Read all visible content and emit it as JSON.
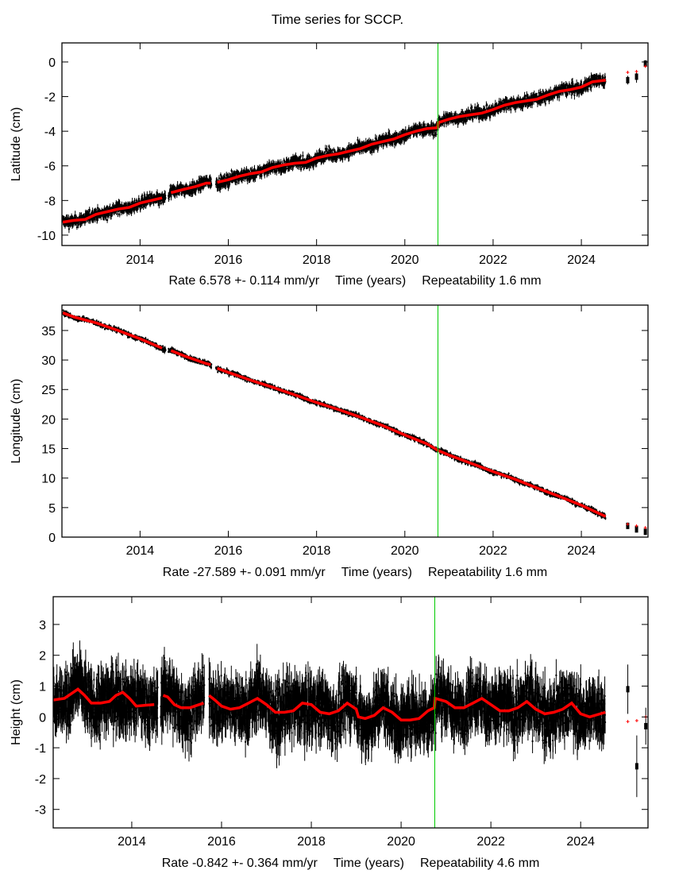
{
  "title": "Time series for SCCP.",
  "colors": {
    "observations": "#000000",
    "model": "#ff0000",
    "marker_line": "#00cc00",
    "axes": "#000000"
  },
  "chart_data": [
    {
      "type": "scatter",
      "title": "Time series for SCCP.",
      "ylabel": "Latitude (cm)",
      "xlabel": "Time (years)",
      "rate_label": "Rate 6.578 +- 0.114 mm/yr",
      "repeatability_label": "Repeatability 1.6 mm",
      "xlim": [
        2012.23,
        2025.51
      ],
      "ylim": [
        -10.6,
        1.1
      ],
      "xticks": [
        2014,
        2016,
        2018,
        2020,
        2022,
        2024
      ],
      "yticks": [
        0,
        -2,
        -4,
        -6,
        -8,
        -10
      ],
      "vertical_marker": 2020.75,
      "gaps": [
        [
          2014.58,
          2014.64
        ],
        [
          2015.62,
          2015.72
        ]
      ],
      "obs_scatter_cm": 0.28,
      "model": {
        "x": [
          2012.25,
          2012.5,
          2012.75,
          2013.0,
          2013.25,
          2013.5,
          2013.75,
          2014.0,
          2014.25,
          2014.5,
          2014.6,
          2014.7,
          2015.0,
          2015.25,
          2015.5,
          2015.6,
          2015.75,
          2016.0,
          2016.25,
          2016.5,
          2016.75,
          2017.0,
          2017.25,
          2017.5,
          2017.75,
          2018.0,
          2018.25,
          2018.5,
          2018.75,
          2019.0,
          2019.25,
          2019.5,
          2019.75,
          2020.0,
          2020.25,
          2020.5,
          2020.74,
          2020.76,
          2021.0,
          2021.25,
          2021.5,
          2021.75,
          2022.0,
          2022.25,
          2022.5,
          2022.75,
          2023.0,
          2023.25,
          2023.5,
          2023.75,
          2024.0,
          2024.25,
          2024.55
        ],
        "y": [
          -9.25,
          -9.15,
          -9.1,
          -8.8,
          -8.65,
          -8.5,
          -8.4,
          -8.15,
          -8.0,
          -7.85,
          -7.8,
          -7.55,
          -7.35,
          -7.2,
          -7.0,
          -7.0,
          -6.95,
          -6.8,
          -6.6,
          -6.45,
          -6.35,
          -6.1,
          -5.95,
          -5.85,
          -5.8,
          -5.55,
          -5.4,
          -5.3,
          -5.15,
          -5.0,
          -4.75,
          -4.6,
          -4.45,
          -4.2,
          -4.0,
          -3.85,
          -3.8,
          -3.5,
          -3.3,
          -3.15,
          -3.05,
          -2.95,
          -2.75,
          -2.5,
          -2.35,
          -2.25,
          -2.15,
          -1.9,
          -1.7,
          -1.6,
          -1.45,
          -1.15,
          -1.05
        ]
      },
      "isolated_points": [
        {
          "x": 2025.05,
          "obs": -1.05,
          "err": 0.25,
          "model": -0.6
        },
        {
          "x": 2025.25,
          "obs": -0.85,
          "err": 0.35,
          "model": -0.55
        },
        {
          "x": 2025.45,
          "obs": -0.1,
          "err": 0.2,
          "model": -0.25
        }
      ]
    },
    {
      "type": "scatter",
      "ylabel": "Longitude (cm)",
      "xlabel": "Time (years)",
      "rate_label": "Rate -27.589 +- 0.091 mm/yr",
      "repeatability_label": "Repeatability 1.6 mm",
      "xlim": [
        2012.23,
        2025.51
      ],
      "ylim": [
        0,
        39.3
      ],
      "xticks": [
        2014,
        2016,
        2018,
        2020,
        2022,
        2024
      ],
      "yticks": [
        0,
        5,
        10,
        15,
        20,
        25,
        30,
        35
      ],
      "vertical_marker": 2020.75,
      "gaps": [
        [
          2014.58,
          2014.64
        ],
        [
          2015.62,
          2015.72
        ]
      ],
      "obs_scatter_cm": 0.35,
      "model": {
        "x": [
          2012.25,
          2012.5,
          2013.0,
          2013.5,
          2014.0,
          2014.5,
          2014.6,
          2014.7,
          2015.0,
          2015.5,
          2015.6,
          2015.75,
          2016.0,
          2016.5,
          2017.0,
          2017.5,
          2018.0,
          2018.5,
          2019.0,
          2019.5,
          2020.0,
          2020.5,
          2020.75,
          2021.0,
          2021.5,
          2022.0,
          2022.5,
          2023.0,
          2023.5,
          2024.0,
          2024.55
        ],
        "y": [
          38.0,
          37.3,
          36.3,
          35.0,
          33.6,
          32.0,
          31.8,
          31.6,
          30.7,
          29.4,
          29.2,
          28.6,
          27.9,
          26.6,
          25.4,
          24.1,
          22.8,
          21.6,
          20.3,
          18.9,
          17.3,
          15.8,
          14.7,
          13.9,
          12.5,
          11.1,
          9.8,
          8.3,
          6.9,
          5.4,
          3.5
        ]
      },
      "isolated_points": [
        {
          "x": 2025.05,
          "obs": 1.9,
          "err": 0.4,
          "model": 2.2
        },
        {
          "x": 2025.25,
          "obs": 1.3,
          "err": 0.4,
          "model": 1.9
        },
        {
          "x": 2025.45,
          "obs": 0.9,
          "err": 0.5,
          "model": 1.6
        }
      ]
    },
    {
      "type": "scatter",
      "ylabel": "Height (cm)",
      "xlabel": "Time (years)",
      "rate_label": "Rate -0.842 +- 0.364 mm/yr",
      "repeatability_label": "Repeatability 4.6 mm",
      "xlim": [
        2012.25,
        2025.5
      ],
      "ylim": [
        -3.6,
        3.9
      ],
      "xticks": [
        2014,
        2016,
        2018,
        2020,
        2022,
        2024
      ],
      "yticks": [
        3,
        2,
        1,
        0,
        -1,
        -2,
        -3
      ],
      "vertical_marker": 2020.75,
      "gaps": [
        [
          2014.58,
          2014.64
        ],
        [
          2015.62,
          2015.72
        ]
      ],
      "obs_scatter_cm": 0.75,
      "model": {
        "x": [
          2012.25,
          2012.5,
          2012.65,
          2012.8,
          2012.95,
          2013.1,
          2013.3,
          2013.5,
          2013.65,
          2013.8,
          2013.95,
          2014.1,
          2014.3,
          2014.5,
          2014.6,
          2014.7,
          2014.8,
          2014.95,
          2015.1,
          2015.3,
          2015.5,
          2015.6,
          2015.72,
          2015.85,
          2016.0,
          2016.2,
          2016.4,
          2016.6,
          2016.8,
          2017.0,
          2017.2,
          2017.4,
          2017.6,
          2017.8,
          2018.0,
          2018.2,
          2018.4,
          2018.6,
          2018.8,
          2019.0,
          2019.05,
          2019.2,
          2019.4,
          2019.6,
          2019.8,
          2020.0,
          2020.2,
          2020.4,
          2020.6,
          2020.74,
          2020.76,
          2021.0,
          2021.2,
          2021.4,
          2021.6,
          2021.8,
          2022.0,
          2022.2,
          2022.4,
          2022.6,
          2022.8,
          2023.0,
          2023.2,
          2023.4,
          2023.6,
          2023.8,
          2024.0,
          2024.2,
          2024.55
        ],
        "y": [
          0.55,
          0.6,
          0.75,
          0.9,
          0.7,
          0.45,
          0.45,
          0.5,
          0.7,
          0.8,
          0.6,
          0.35,
          0.38,
          0.4,
          0.45,
          0.7,
          0.65,
          0.4,
          0.3,
          0.3,
          0.4,
          0.45,
          0.7,
          0.55,
          0.35,
          0.25,
          0.3,
          0.45,
          0.6,
          0.4,
          0.15,
          0.15,
          0.2,
          0.45,
          0.4,
          0.15,
          0.1,
          0.2,
          0.45,
          0.25,
          0.0,
          -0.05,
          0.05,
          0.3,
          0.15,
          -0.1,
          -0.1,
          -0.05,
          0.2,
          0.3,
          0.6,
          0.5,
          0.3,
          0.3,
          0.45,
          0.6,
          0.4,
          0.2,
          0.2,
          0.3,
          0.5,
          0.25,
          0.1,
          0.15,
          0.25,
          0.45,
          0.1,
          0.0,
          0.15
        ]
      },
      "isolated_points": [
        {
          "x": 2025.05,
          "obs": 0.9,
          "err": 0.8,
          "model": -0.15
        },
        {
          "x": 2025.25,
          "obs": -1.6,
          "err": 1.0,
          "model": -0.12
        },
        {
          "x": 2025.45,
          "obs": -0.3,
          "err": 0.6,
          "model": 0.0
        }
      ]
    }
  ]
}
